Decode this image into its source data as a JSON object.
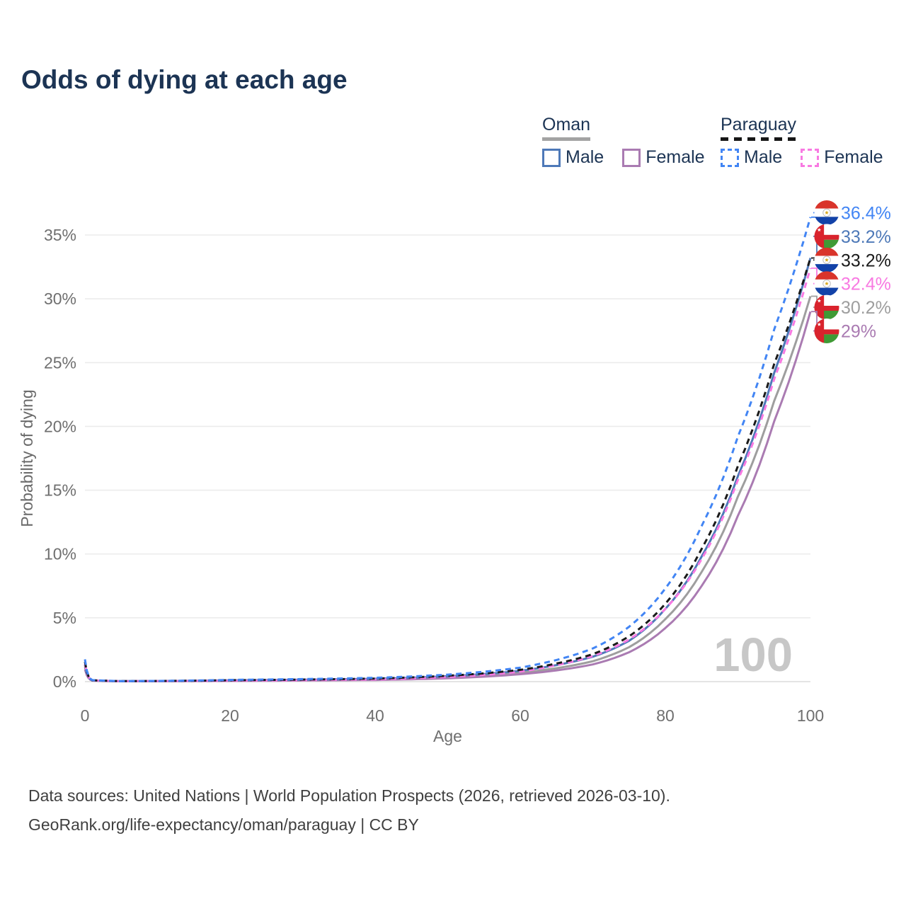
{
  "title": "Odds of dying at each age",
  "legend": {
    "groups": [
      {
        "label": "Oman",
        "line": {
          "color": "#a3a3a3",
          "dash": false
        },
        "items": [
          {
            "label": "Male",
            "swatch": {
              "color": "#4e79b8",
              "dash": false
            }
          },
          {
            "label": "Female",
            "swatch": {
              "color": "#aa7bb2",
              "dash": false
            }
          }
        ]
      },
      {
        "label": "Paraguay",
        "line": {
          "color": "#161616",
          "dash": true
        },
        "items": [
          {
            "label": "Male",
            "swatch": {
              "color": "#4285f4",
              "dash": true
            }
          },
          {
            "label": "Female",
            "swatch": {
              "color": "#f87ae2",
              "dash": true
            }
          }
        ]
      }
    ]
  },
  "footer": {
    "line1": "Data sources: United Nations | World Population Prospects (2026, retrieved 2026-03-10).",
    "line2": "GeoRank.org/life-expectancy/oman/paraguay | CC BY"
  },
  "chart_data": {
    "type": "line",
    "xlabel": "Age",
    "ylabel": "Probability of dying",
    "xlim": [
      0,
      100
    ],
    "ylim": [
      0,
      37.5
    ],
    "grid": true,
    "watermark": "100",
    "x_ticks": [
      0,
      20,
      40,
      60,
      80,
      100
    ],
    "y_ticks": [
      {
        "value": 0,
        "label": "0%"
      },
      {
        "value": 5,
        "label": "5%"
      },
      {
        "value": 10,
        "label": "10%"
      },
      {
        "value": 15,
        "label": "15%"
      },
      {
        "value": 20,
        "label": "20%"
      },
      {
        "value": 25,
        "label": "25%"
      },
      {
        "value": 30,
        "label": "30%"
      },
      {
        "value": 35,
        "label": "35%"
      }
    ],
    "anchor_ages": [
      0,
      1,
      5,
      10,
      20,
      30,
      40,
      50,
      60,
      65,
      70,
      75,
      80,
      85,
      90,
      95,
      100
    ],
    "series": [
      {
        "name": "Paraguay Male",
        "country": "Paraguay",
        "sex": "Male",
        "color": "#4285f4",
        "dashed": true,
        "flag": "paraguay",
        "end_label": "36.4%",
        "end_value": 36.4,
        "values": [
          1.75,
          0.12,
          0.045,
          0.055,
          0.14,
          0.2,
          0.3,
          0.55,
          1.1,
          1.7,
          2.6,
          4.3,
          7.3,
          12.2,
          19.2,
          27.6,
          36.4
        ]
      },
      {
        "name": "Oman Male",
        "country": "Oman",
        "sex": "Male",
        "color": "#4e79b8",
        "dashed": false,
        "flag": "oman",
        "end_label": "33.2%",
        "end_value": 33.2,
        "values": [
          1.3,
          0.1,
          0.035,
          0.045,
          0.1,
          0.15,
          0.22,
          0.42,
          0.85,
          1.3,
          1.95,
          3.2,
          5.7,
          9.8,
          16.1,
          24.2,
          33.2
        ]
      },
      {
        "name": "Paraguay Both",
        "country": "Paraguay",
        "sex": "Both",
        "color": "#1a1a1a",
        "dashed": true,
        "flag": "paraguay",
        "end_label": "33.2%",
        "end_value": 33.2,
        "values": [
          1.55,
          0.11,
          0.04,
          0.05,
          0.11,
          0.16,
          0.24,
          0.46,
          0.92,
          1.42,
          2.15,
          3.55,
          6.1,
          10.4,
          16.9,
          24.9,
          33.2
        ]
      },
      {
        "name": "Paraguay Female",
        "country": "Paraguay",
        "sex": "Female",
        "color": "#f87ae2",
        "dashed": true,
        "flag": "paraguay",
        "end_label": "32.4%",
        "end_value": 32.4,
        "values": [
          1.4,
          0.1,
          0.035,
          0.04,
          0.07,
          0.11,
          0.17,
          0.36,
          0.78,
          1.3,
          2.0,
          3.3,
          5.7,
          9.6,
          15.8,
          23.7,
          32.4
        ]
      },
      {
        "name": "Oman Both",
        "country": "Oman",
        "sex": "Both",
        "color": "#9e9e9e",
        "dashed": false,
        "flag": "oman",
        "end_label": "30.2%",
        "end_value": 30.2,
        "values": [
          1.15,
          0.09,
          0.03,
          0.04,
          0.08,
          0.12,
          0.17,
          0.33,
          0.7,
          1.05,
          1.6,
          2.7,
          4.9,
          8.6,
          14.5,
          22.0,
          30.2
        ]
      },
      {
        "name": "Oman Female",
        "country": "Oman",
        "sex": "Female",
        "color": "#aa7bb2",
        "dashed": false,
        "flag": "oman",
        "end_label": "29%",
        "end_value": 29.0,
        "values": [
          0.95,
          0.08,
          0.025,
          0.03,
          0.055,
          0.09,
          0.13,
          0.26,
          0.58,
          0.88,
          1.35,
          2.3,
          4.2,
          7.5,
          13.0,
          20.4,
          29.0
        ]
      }
    ]
  }
}
